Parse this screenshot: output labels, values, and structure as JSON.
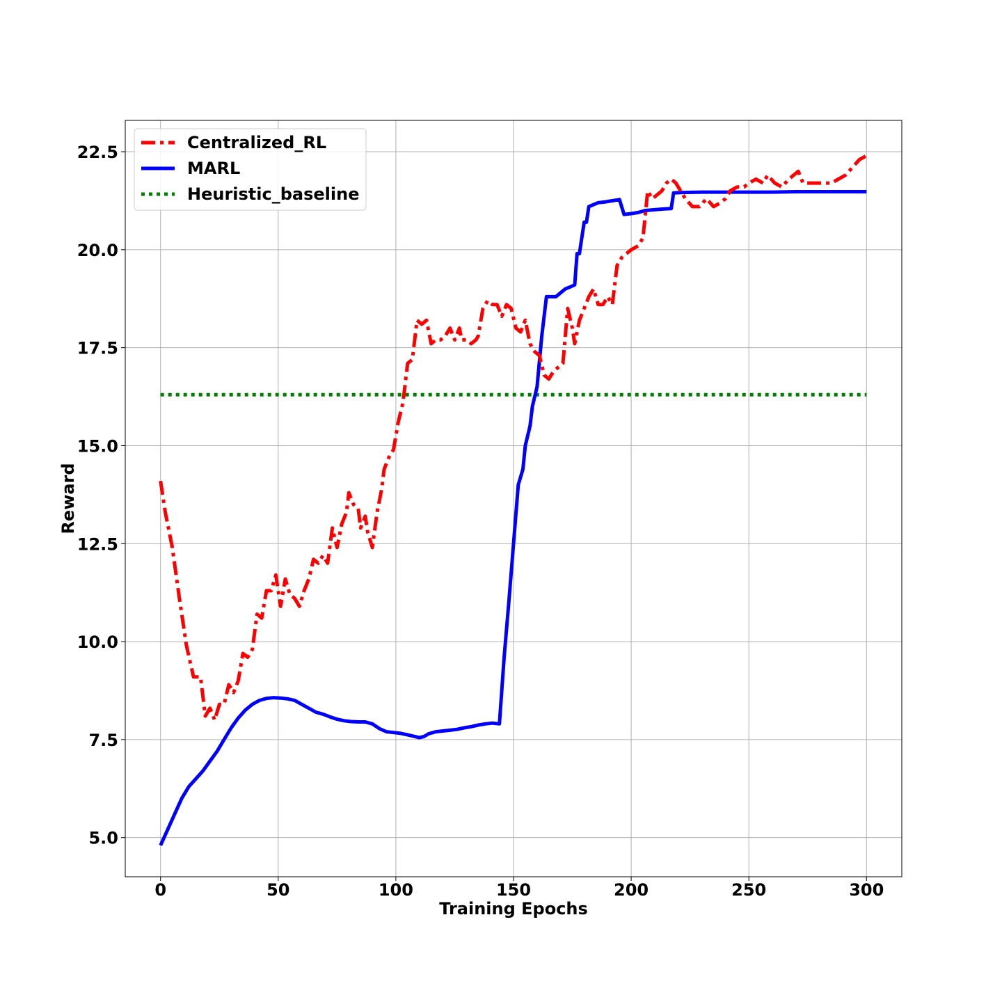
{
  "chart_data": {
    "type": "line",
    "title": "",
    "xlabel": "Training Epochs",
    "ylabel": "Reward",
    "xlim": [
      -15,
      315
    ],
    "ylim": [
      4.0,
      23.3
    ],
    "xticks": [
      0,
      50,
      100,
      150,
      200,
      250,
      300
    ],
    "yticks": [
      5.0,
      7.5,
      10.0,
      12.5,
      15.0,
      17.5,
      20.0,
      22.5
    ],
    "grid": true,
    "legend_position": "top-left",
    "series": [
      {
        "name": "Centralized_RL",
        "color": "#ff0000",
        "style": "dashdot",
        "points": [
          [
            0,
            14.1
          ],
          [
            2,
            13.3
          ],
          [
            5,
            12.4
          ],
          [
            8,
            11.1
          ],
          [
            11,
            9.9
          ],
          [
            14,
            9.1
          ],
          [
            17,
            9.1
          ],
          [
            19,
            8.1
          ],
          [
            21,
            8.3
          ],
          [
            23,
            8.0
          ],
          [
            25,
            8.4
          ],
          [
            27,
            8.4
          ],
          [
            29,
            8.9
          ],
          [
            31,
            8.7
          ],
          [
            33,
            9.0
          ],
          [
            35,
            9.7
          ],
          [
            37,
            9.6
          ],
          [
            39,
            9.8
          ],
          [
            41,
            10.7
          ],
          [
            43,
            10.6
          ],
          [
            45,
            11.3
          ],
          [
            47,
            11.3
          ],
          [
            49,
            11.7
          ],
          [
            51,
            10.9
          ],
          [
            53,
            11.6
          ],
          [
            55,
            11.2
          ],
          [
            57,
            11.1
          ],
          [
            59,
            10.9
          ],
          [
            61,
            11.3
          ],
          [
            63,
            11.6
          ],
          [
            65,
            12.1
          ],
          [
            67,
            12.0
          ],
          [
            69,
            12.2
          ],
          [
            71,
            12.0
          ],
          [
            73,
            12.9
          ],
          [
            75,
            12.4
          ],
          [
            77,
            13.0
          ],
          [
            79,
            13.3
          ],
          [
            80,
            13.8
          ],
          [
            82,
            13.5
          ],
          [
            84,
            13.4
          ],
          [
            85,
            12.9
          ],
          [
            87,
            13.2
          ],
          [
            88,
            12.8
          ],
          [
            90,
            12.4
          ],
          [
            92,
            13.3
          ],
          [
            94,
            13.9
          ],
          [
            95,
            14.4
          ],
          [
            97,
            14.7
          ],
          [
            99,
            14.9
          ],
          [
            101,
            15.6
          ],
          [
            103,
            16.1
          ],
          [
            105,
            17.1
          ],
          [
            107,
            17.2
          ],
          [
            109,
            18.2
          ],
          [
            111,
            18.1
          ],
          [
            113,
            18.2
          ],
          [
            115,
            17.6
          ],
          [
            117,
            17.7
          ],
          [
            119,
            17.7
          ],
          [
            121,
            17.8
          ],
          [
            123,
            18.0
          ],
          [
            125,
            17.7
          ],
          [
            127,
            18.0
          ],
          [
            128,
            17.7
          ],
          [
            130,
            17.7
          ],
          [
            132,
            17.6
          ],
          [
            134,
            17.7
          ],
          [
            135,
            17.8
          ],
          [
            137,
            18.5
          ],
          [
            139,
            18.7
          ],
          [
            141,
            18.6
          ],
          [
            143,
            18.6
          ],
          [
            145,
            18.3
          ],
          [
            147,
            18.6
          ],
          [
            149,
            18.5
          ],
          [
            151,
            18.0
          ],
          [
            153,
            17.9
          ],
          [
            155,
            18.2
          ],
          [
            157,
            17.6
          ],
          [
            159,
            17.4
          ],
          [
            161,
            17.3
          ],
          [
            163,
            16.8
          ],
          [
            165,
            16.7
          ],
          [
            167,
            16.9
          ],
          [
            169,
            17.0
          ],
          [
            171,
            17.1
          ],
          [
            173,
            18.5
          ],
          [
            175,
            18.0
          ],
          [
            176,
            17.6
          ],
          [
            178,
            18.2
          ],
          [
            180,
            18.5
          ],
          [
            182,
            18.8
          ],
          [
            184,
            19.0
          ],
          [
            186,
            18.6
          ],
          [
            188,
            18.6
          ],
          [
            190,
            18.8
          ],
          [
            192,
            18.6
          ],
          [
            194,
            19.6
          ],
          [
            196,
            19.8
          ],
          [
            198,
            19.9
          ],
          [
            200,
            20.0
          ],
          [
            203,
            20.1
          ],
          [
            205,
            20.3
          ],
          [
            207,
            21.5
          ],
          [
            209,
            21.3
          ],
          [
            211,
            21.4
          ],
          [
            213,
            21.5
          ],
          [
            215,
            21.7
          ],
          [
            217,
            21.8
          ],
          [
            219,
            21.7
          ],
          [
            221,
            21.5
          ],
          [
            223,
            21.3
          ],
          [
            226,
            21.1
          ],
          [
            229,
            21.1
          ],
          [
            232,
            21.3
          ],
          [
            235,
            21.1
          ],
          [
            238,
            21.2
          ],
          [
            240,
            21.3
          ],
          [
            242,
            21.5
          ],
          [
            245,
            21.6
          ],
          [
            248,
            21.6
          ],
          [
            250,
            21.7
          ],
          [
            253,
            21.8
          ],
          [
            256,
            21.7
          ],
          [
            258,
            21.9
          ],
          [
            261,
            21.7
          ],
          [
            264,
            21.6
          ],
          [
            267,
            21.8
          ],
          [
            269,
            21.9
          ],
          [
            271,
            22.0
          ],
          [
            273,
            21.7
          ],
          [
            276,
            21.7
          ],
          [
            279,
            21.7
          ],
          [
            282,
            21.7
          ],
          [
            285,
            21.7
          ],
          [
            288,
            21.8
          ],
          [
            291,
            21.9
          ],
          [
            294,
            22.1
          ],
          [
            297,
            22.3
          ],
          [
            300,
            22.4
          ]
        ]
      },
      {
        "name": "MARL",
        "color": "#0000ff",
        "style": "solid",
        "points": [
          [
            0,
            4.8
          ],
          [
            3,
            5.2
          ],
          [
            6,
            5.6
          ],
          [
            9,
            6.0
          ],
          [
            12,
            6.3
          ],
          [
            15,
            6.5
          ],
          [
            18,
            6.7
          ],
          [
            21,
            6.95
          ],
          [
            24,
            7.2
          ],
          [
            27,
            7.5
          ],
          [
            30,
            7.8
          ],
          [
            33,
            8.05
          ],
          [
            36,
            8.25
          ],
          [
            39,
            8.4
          ],
          [
            42,
            8.5
          ],
          [
            45,
            8.55
          ],
          [
            48,
            8.57
          ],
          [
            51,
            8.56
          ],
          [
            54,
            8.54
          ],
          [
            57,
            8.5
          ],
          [
            60,
            8.4
          ],
          [
            63,
            8.3
          ],
          [
            66,
            8.2
          ],
          [
            69,
            8.15
          ],
          [
            72,
            8.08
          ],
          [
            75,
            8.02
          ],
          [
            78,
            7.98
          ],
          [
            81,
            7.96
          ],
          [
            84,
            7.95
          ],
          [
            87,
            7.95
          ],
          [
            90,
            7.9
          ],
          [
            93,
            7.78
          ],
          [
            96,
            7.7
          ],
          [
            99,
            7.68
          ],
          [
            102,
            7.66
          ],
          [
            105,
            7.62
          ],
          [
            108,
            7.58
          ],
          [
            110,
            7.55
          ],
          [
            112,
            7.58
          ],
          [
            114,
            7.65
          ],
          [
            117,
            7.7
          ],
          [
            120,
            7.72
          ],
          [
            123,
            7.74
          ],
          [
            126,
            7.76
          ],
          [
            129,
            7.8
          ],
          [
            132,
            7.83
          ],
          [
            135,
            7.87
          ],
          [
            138,
            7.9
          ],
          [
            141,
            7.92
          ],
          [
            144,
            7.9
          ],
          [
            146,
            9.6
          ],
          [
            148,
            11.0
          ],
          [
            150,
            12.5
          ],
          [
            152,
            14.0
          ],
          [
            154,
            14.4
          ],
          [
            155,
            15.0
          ],
          [
            157,
            15.5
          ],
          [
            158,
            16.0
          ],
          [
            160,
            16.5
          ],
          [
            162,
            17.8
          ],
          [
            164,
            18.8
          ],
          [
            166,
            18.8
          ],
          [
            168,
            18.8
          ],
          [
            170,
            18.9
          ],
          [
            172,
            19.0
          ],
          [
            174,
            19.05
          ],
          [
            176,
            19.1
          ],
          [
            177,
            19.9
          ],
          [
            178,
            19.9
          ],
          [
            180,
            20.7
          ],
          [
            181,
            20.7
          ],
          [
            182,
            21.1
          ],
          [
            184,
            21.15
          ],
          [
            186,
            21.2
          ],
          [
            189,
            21.22
          ],
          [
            192,
            21.25
          ],
          [
            195,
            21.28
          ],
          [
            197,
            20.9
          ],
          [
            200,
            20.92
          ],
          [
            203,
            20.95
          ],
          [
            206,
            21.0
          ],
          [
            210,
            21.02
          ],
          [
            214,
            21.04
          ],
          [
            217,
            21.05
          ],
          [
            218,
            21.45
          ],
          [
            222,
            21.46
          ],
          [
            230,
            21.47
          ],
          [
            240,
            21.47
          ],
          [
            250,
            21.47
          ],
          [
            260,
            21.47
          ],
          [
            270,
            21.48
          ],
          [
            280,
            21.48
          ],
          [
            290,
            21.48
          ],
          [
            300,
            21.48
          ]
        ]
      },
      {
        "name": "Heuristic_baseline",
        "color": "#008000",
        "style": "dotted",
        "points": [
          [
            0,
            16.3
          ],
          [
            300,
            16.3
          ]
        ]
      }
    ]
  }
}
